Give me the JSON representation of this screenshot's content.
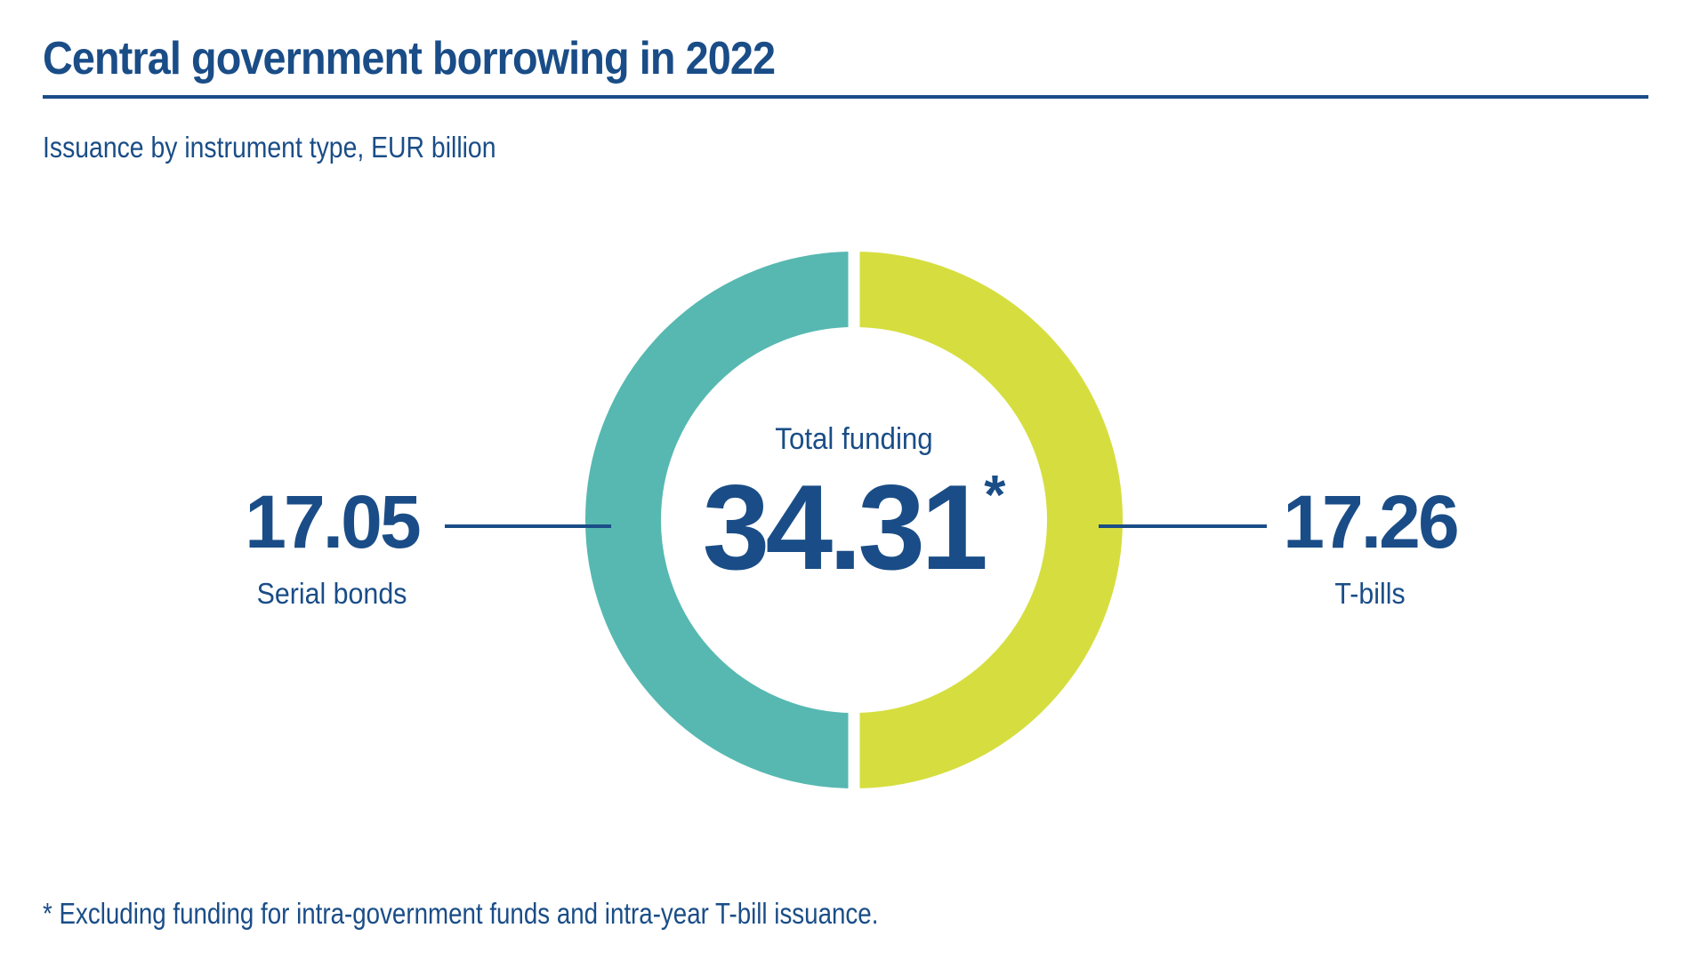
{
  "page": {
    "title": "Central government borrowing in 2022",
    "subtitle": "Issuance by instrument type, EUR billion",
    "footnote": "* Excluding funding for intra-government funds and intra-year T-bill issuance."
  },
  "colors": {
    "text_blue": "#1A4D87",
    "teal": "#56B8B1",
    "lime": "#D5DE3E",
    "background": "#FFFFFF"
  },
  "chart_data": {
    "type": "pie",
    "subtype": "donut",
    "title": "Central government borrowing in 2022",
    "subtitle": "Issuance by instrument type, EUR billion",
    "unit": "EUR billion",
    "categories": [
      "Serial bonds",
      "T-bills"
    ],
    "values": [
      17.05,
      17.26
    ],
    "colors": [
      "#56B8B1",
      "#D5DE3E"
    ],
    "total": 34.31,
    "total_label": "Total funding",
    "total_value": "34.31",
    "total_note_marker": "*",
    "start_angle_deg": -90,
    "segment_gap": true,
    "legend_position": "side-callouts",
    "grid": false,
    "footnote": "* Excluding funding for intra-government funds and intra-year T-bill issuance."
  }
}
